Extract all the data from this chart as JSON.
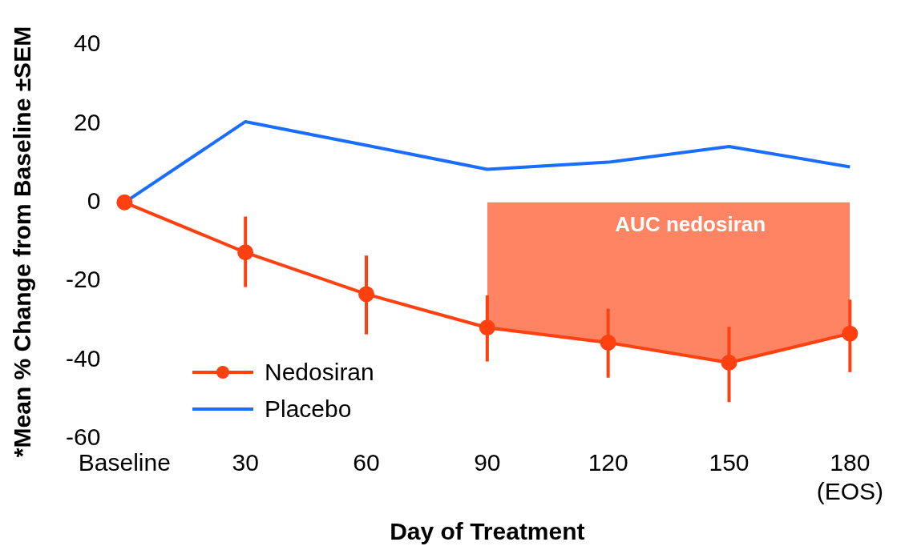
{
  "chart_data": {
    "type": "line",
    "xlabel": "Day of Treatment",
    "ylabel": "*Mean % Change from Baseline ±SEM",
    "categories": [
      "Baseline",
      "30",
      "60",
      "90",
      "120",
      "150",
      "180\n(EOS)"
    ],
    "series": [
      {
        "name": "Nedosiran",
        "color": "#ff4010",
        "marker": "circle",
        "values": [
          0,
          -12.7,
          -23.3,
          -31.8,
          -35.6,
          -40.7,
          -33.3
        ],
        "errors": [
          null,
          [
            -21.5,
            -3.6
          ],
          [
            -33.5,
            -13.5
          ],
          [
            -40.4,
            -23.6
          ],
          [
            -44.5,
            -27.0
          ],
          [
            -50.7,
            -31.6
          ],
          [
            -43.1,
            -24.7
          ]
        ]
      },
      {
        "name": "Placebo",
        "color": "#1a6dff",
        "marker": "none",
        "values": [
          0,
          20.5,
          14.5,
          8.4,
          10.2,
          14.2,
          9.0
        ]
      },
      {
        "type": "area",
        "color": "#ff8463",
        "values": [
          null,
          null,
          null,
          -31.8,
          -35.6,
          -40.7,
          -33.3
        ]
      }
    ],
    "annotations": [
      "AUC nedosiran"
    ],
    "ylim": [
      -60,
      40
    ],
    "yticks": [
      -60,
      -40,
      -20,
      0,
      20,
      40
    ],
    "grid": false,
    "legend": "bottom left"
  }
}
